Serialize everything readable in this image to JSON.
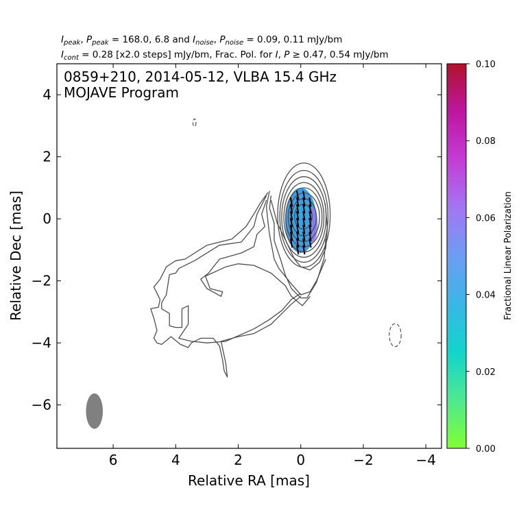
{
  "header": {
    "line1": [
      {
        "t": "I",
        "i": true
      },
      {
        "t": "peak",
        "sub": true
      },
      {
        "t": ", "
      },
      {
        "t": "P",
        "i": true
      },
      {
        "t": "peak",
        "sub": true
      },
      {
        "t": " = 168.0, 6.8 and "
      },
      {
        "t": "I",
        "i": true
      },
      {
        "t": "noise",
        "sub": true
      },
      {
        "t": ", "
      },
      {
        "t": "P",
        "i": true
      },
      {
        "t": "noise",
        "sub": true
      },
      {
        "t": " = 0.09, 0.11 mJy/bm"
      }
    ],
    "line2": [
      {
        "t": "I",
        "i": true
      },
      {
        "t": "cont",
        "sub": true
      },
      {
        "t": " = 0.28 [x2.0 steps] mJy/bm, Frac. Pol. for "
      },
      {
        "t": "I",
        "i": true
      },
      {
        "t": ", "
      },
      {
        "t": "P",
        "i": true
      },
      {
        "t": " ≥ 0.47, 0.54 mJy/bm"
      }
    ]
  },
  "chart_data": {
    "type": "contour",
    "title_lines": [
      "0859+210, 2014-05-12, VLBA 15.4 GHz",
      "MOJAVE Program"
    ],
    "xlabel": "Relative RA [mas]",
    "ylabel": "Relative Dec [mas]",
    "xlim": [
      7.8,
      -4.5
    ],
    "ylim": [
      -7.4,
      5.0
    ],
    "xticks": [
      6,
      4,
      2,
      0,
      -2,
      -4
    ],
    "yticks": [
      4,
      2,
      0,
      -2,
      -4,
      -6
    ],
    "colorbar": {
      "label": "Fractional Linear Polarization",
      "range": [
        0.0,
        0.1
      ],
      "ticks": [
        "0.00",
        "0.02",
        "0.04",
        "0.06",
        "0.08",
        "0.10"
      ],
      "colors": [
        "#7fff32",
        "#4fe892",
        "#11d5cc",
        "#3ab6e6",
        "#6d9cf4",
        "#a476f3",
        "#c43cd6",
        "#be16a1",
        "#b0132a"
      ]
    },
    "core_contours": [
      {
        "cx": -0.08,
        "cy": 0.07,
        "rx": 0.28,
        "ry": 0.4
      },
      {
        "cx": -0.1,
        "cy": 0.05,
        "rx": 0.4,
        "ry": 0.6
      },
      {
        "cx": -0.1,
        "cy": 0.05,
        "rx": 0.5,
        "ry": 0.78
      },
      {
        "cx": -0.1,
        "cy": 0.05,
        "rx": 0.58,
        "ry": 0.95
      },
      {
        "cx": -0.1,
        "cy": 0.05,
        "rx": 0.64,
        "ry": 1.12
      },
      {
        "cx": -0.1,
        "cy": 0.06,
        "rx": 0.71,
        "ry": 1.3
      },
      {
        "cx": -0.1,
        "cy": 0.08,
        "rx": 0.77,
        "ry": 1.48
      },
      {
        "cx": -0.1,
        "cy": 0.12,
        "rx": 0.84,
        "ry": 1.68
      }
    ],
    "jet_contours": [
      [
        [
          0.95,
          0.6
        ],
        [
          0.75,
          -0.15
        ],
        [
          0.6,
          -0.45
        ],
        [
          0.2,
          -1.3
        ],
        [
          0.0,
          -1.55
        ],
        [
          -0.3,
          -1.65
        ],
        [
          -0.6,
          -1.4
        ],
        [
          -0.8,
          -0.95
        ],
        [
          -0.85,
          -0.3
        ],
        [
          -0.78,
          0.5
        ]
      ],
      [
        [
          0.95,
          0.75
        ],
        [
          1.0,
          0.35
        ],
        [
          0.85,
          -0.15
        ],
        [
          0.85,
          -0.7
        ],
        [
          0.65,
          -1.3
        ],
        [
          0.5,
          -1.8
        ],
        [
          0.3,
          -2.25
        ],
        [
          0.0,
          -2.55
        ],
        [
          -0.2,
          -2.55
        ],
        [
          -0.5,
          -2.05
        ],
        [
          -0.75,
          -1.25
        ],
        [
          -0.8,
          -0.65
        ]
      ],
      [
        [
          1.0,
          0.9
        ],
        [
          1.1,
          0.4
        ],
        [
          1.05,
          -0.1
        ],
        [
          1.0,
          -0.5
        ],
        [
          0.85,
          -1.3
        ],
        [
          0.7,
          -1.6
        ],
        [
          0.3,
          -2.1
        ],
        [
          0.0,
          -2.45
        ],
        [
          -0.3,
          -2.35
        ],
        [
          -0.5,
          -2.0
        ],
        [
          -0.8,
          -1.3
        ]
      ],
      [
        [
          1.1,
          0.6
        ],
        [
          1.25,
          0.15
        ],
        [
          1.15,
          -0.25
        ],
        [
          1.4,
          -0.5
        ],
        [
          1.5,
          -0.9
        ],
        [
          1.9,
          -1.1
        ],
        [
          2.6,
          -1.3
        ],
        [
          2.95,
          -1.75
        ],
        [
          3.2,
          -1.95
        ],
        [
          3.0,
          -2.25
        ],
        [
          2.55,
          -2.5
        ],
        [
          2.5,
          -2.35
        ],
        [
          2.9,
          -2.25
        ],
        [
          3.05,
          -1.85
        ],
        [
          2.4,
          -1.55
        ],
        [
          2.0,
          -1.45
        ],
        [
          1.5,
          -1.5
        ],
        [
          0.95,
          -1.75
        ],
        [
          0.5,
          -2.15
        ],
        [
          0.3,
          -2.5
        ],
        [
          -0.05,
          -2.8
        ],
        [
          -0.3,
          -2.5
        ]
      ],
      [
        [
          1.1,
          0.75
        ],
        [
          1.4,
          0.15
        ],
        [
          1.5,
          -0.25
        ],
        [
          1.9,
          -0.75
        ],
        [
          2.6,
          -0.85
        ],
        [
          3.4,
          -1.35
        ],
        [
          3.7,
          -1.5
        ],
        [
          3.9,
          -1.6
        ],
        [
          4.0,
          -1.75
        ],
        [
          4.2,
          -1.8
        ],
        [
          4.3,
          -2.45
        ],
        [
          4.45,
          -2.7
        ],
        [
          4.45,
          -2.9
        ],
        [
          4.2,
          -3.05
        ],
        [
          4.2,
          -3.45
        ],
        [
          4.0,
          -3.5
        ],
        [
          3.8,
          -3.5
        ],
        [
          3.8,
          -2.9
        ],
        [
          3.6,
          -2.8
        ],
        [
          3.6,
          -3.4
        ],
        [
          3.8,
          -3.7
        ],
        [
          3.9,
          -3.85
        ],
        [
          3.5,
          -3.95
        ],
        [
          3.0,
          -4.0
        ],
        [
          2.4,
          -3.95
        ],
        [
          1.5,
          -3.55
        ],
        [
          1.0,
          -3.25
        ],
        [
          0.6,
          -2.95
        ],
        [
          0.3,
          -2.6
        ],
        [
          0.0,
          -2.4
        ]
      ],
      [
        [
          1.05,
          0.85
        ],
        [
          1.3,
          0.5
        ],
        [
          1.5,
          0.15
        ],
        [
          1.75,
          -0.25
        ],
        [
          2.2,
          -0.65
        ],
        [
          3.0,
          -0.85
        ],
        [
          3.7,
          -1.3
        ],
        [
          4.0,
          -1.35
        ],
        [
          4.3,
          -1.55
        ],
        [
          4.5,
          -1.95
        ],
        [
          4.7,
          -2.2
        ],
        [
          4.5,
          -2.6
        ],
        [
          4.55,
          -2.85
        ],
        [
          4.8,
          -2.9
        ],
        [
          4.7,
          -3.2
        ],
        [
          4.6,
          -3.6
        ],
        [
          4.7,
          -3.85
        ],
        [
          4.6,
          -4.0
        ],
        [
          4.45,
          -4.05
        ],
        [
          4.15,
          -3.8
        ],
        [
          3.85,
          -4.05
        ],
        [
          3.6,
          -4.15
        ],
        [
          3.5,
          -4.0
        ],
        [
          3.2,
          -3.85
        ],
        [
          2.8,
          -3.85
        ],
        [
          2.6,
          -4.1
        ],
        [
          2.5,
          -4.55
        ],
        [
          2.45,
          -4.9
        ],
        [
          2.35,
          -5.1
        ],
        [
          2.4,
          -4.65
        ],
        [
          2.55,
          -3.95
        ],
        [
          2.0,
          -3.8
        ],
        [
          1.5,
          -3.7
        ],
        [
          0.95,
          -3.4
        ],
        [
          0.6,
          -3.05
        ],
        [
          0.3,
          -2.75
        ],
        [
          0.0,
          -2.5
        ]
      ]
    ],
    "negative_contours": [
      {
        "cx": 3.4,
        "cy": 3.1,
        "rx": 0.05,
        "ry": 0.12
      },
      {
        "cx": -3.02,
        "cy": -3.75,
        "rx": 0.19,
        "ry": 0.37
      }
    ],
    "beam": {
      "cx": 6.6,
      "cy": -6.2,
      "rx": 0.27,
      "ry": 0.57,
      "color": "#808080"
    },
    "pol_patch": {
      "cx": 0.0,
      "cy": -0.05,
      "rx": 0.5,
      "ry": 1.05,
      "color": "#3f9ee6",
      "edge_color": "#8c7aee",
      "core_color": "#35a6e2"
    },
    "evpa_vectors": {
      "x_min": -0.5,
      "x_max": 0.55,
      "y_min": -1.0,
      "y_max": 1.0,
      "step": 0.1,
      "length": 0.3,
      "angle_deg": 10
    }
  }
}
